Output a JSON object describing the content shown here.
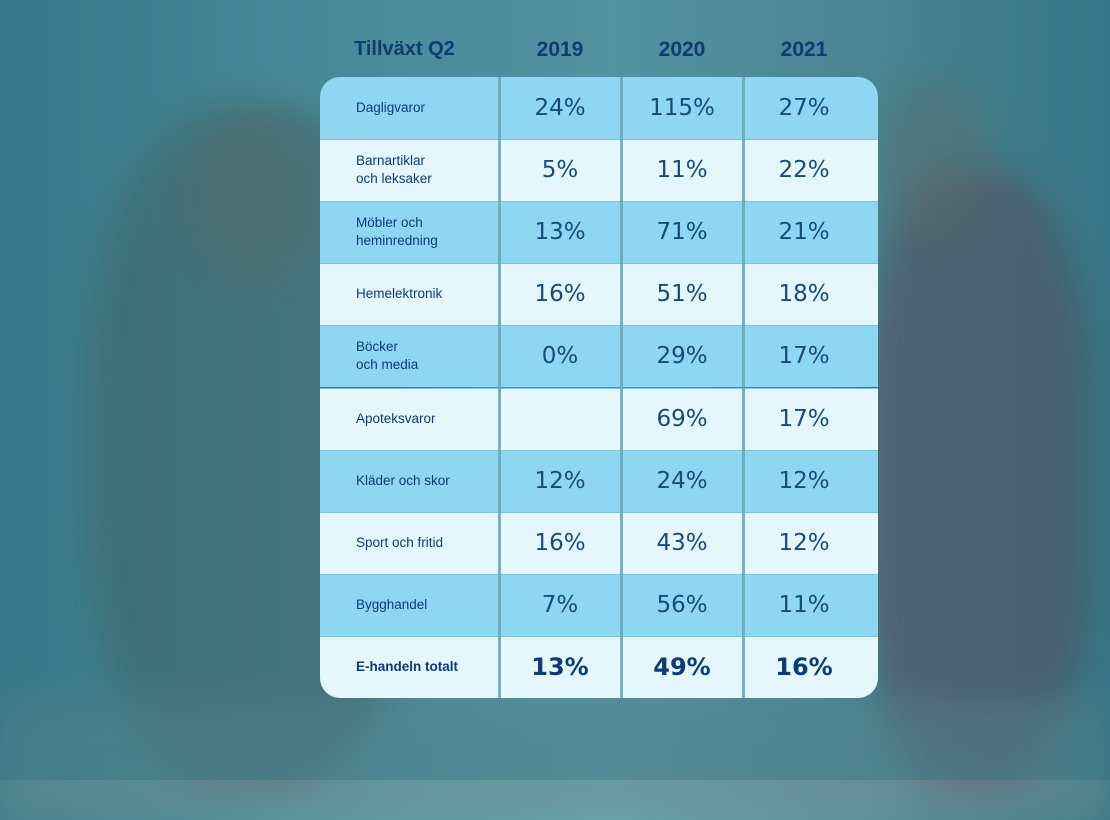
{
  "chart_data": {
    "type": "table",
    "title": "Tillväxt Q2",
    "columns": [
      "2019",
      "2020",
      "2021"
    ],
    "rows": [
      {
        "label": "Dagligvaror",
        "values": [
          "24%",
          "115%",
          "27%"
        ]
      },
      {
        "label": "Barnartiklar\noch leksaker",
        "values": [
          "5%",
          "11%",
          "22%"
        ]
      },
      {
        "label": "Möbler och\nheminredning",
        "values": [
          "13%",
          "71%",
          "21%"
        ]
      },
      {
        "label": "Hemelektronik",
        "values": [
          "16%",
          "51%",
          "18%"
        ]
      },
      {
        "label": "Böcker\noch media",
        "values": [
          "0%",
          "29%",
          "17%"
        ]
      },
      {
        "label": "Apoteksvaror",
        "values": [
          "",
          "69%",
          "17%"
        ]
      },
      {
        "label": "Kläder och skor",
        "values": [
          "12%",
          "24%",
          "12%"
        ]
      },
      {
        "label": "Sport och fritid",
        "values": [
          "16%",
          "43%",
          "12%"
        ]
      },
      {
        "label": "Bygghandel",
        "values": [
          "7%",
          "56%",
          "11%"
        ]
      },
      {
        "label": "E-handeln totalt",
        "values": [
          "13%",
          "49%",
          "16%"
        ],
        "total": true
      }
    ]
  },
  "colors": {
    "header_text": "#0d3b73",
    "row_dark": "#8fd6f3",
    "row_light": "#e4f7fc"
  }
}
